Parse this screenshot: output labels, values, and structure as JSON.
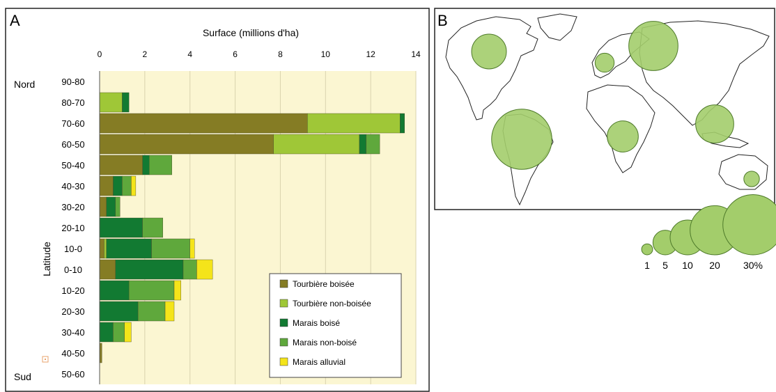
{
  "chart_data": [
    {
      "type": "bar",
      "orientation": "horizontal",
      "stacked": true,
      "panel_label": "A",
      "title": "Surface (millions d'ha)",
      "ylabel": "Latitude",
      "y_top_label": "Nord",
      "y_bottom_label": "Sud",
      "xlim": [
        0,
        14
      ],
      "xticks": [
        "0",
        "2",
        "4",
        "6",
        "8",
        "10",
        "12",
        "14"
      ],
      "grid": true,
      "legend_position": "bottom-right",
      "categories": [
        "90-80",
        "80-70",
        "70-60",
        "60-50",
        "50-40",
        "40-30",
        "30-20",
        "20-10",
        "10-0",
        "0-10",
        "10-20",
        "20-30",
        "30-40",
        "40-50",
        "50-60"
      ],
      "series": [
        {
          "name": "Tourbière boisée",
          "color": "#857c24",
          "values": [
            0,
            0,
            9.2,
            7.7,
            1.9,
            0.6,
            0.3,
            0,
            0.2,
            0.7,
            0,
            0,
            0,
            0.1,
            0
          ]
        },
        {
          "name": "Tourbière non-boisée",
          "color": "#9fc737",
          "values": [
            0,
            1.0,
            4.1,
            3.8,
            0,
            0,
            0,
            0,
            0.1,
            0,
            0,
            0,
            0,
            0,
            0
          ]
        },
        {
          "name": "Marais boisé",
          "color": "#127a32",
          "values": [
            0,
            0.3,
            0.2,
            0.3,
            0.3,
            0.4,
            0.4,
            1.9,
            2.0,
            3.0,
            1.3,
            1.7,
            0.6,
            0,
            0
          ]
        },
        {
          "name": "Marais non-boisé",
          "color": "#5fa83c",
          "values": [
            0,
            0,
            0,
            0.6,
            1.0,
            0.4,
            0.2,
            0.9,
            1.7,
            0.6,
            2.0,
            1.2,
            0.5,
            0,
            0
          ]
        },
        {
          "name": "Marais alluvial",
          "color": "#f4e41a",
          "values": [
            0,
            0,
            0,
            0,
            0,
            0.2,
            0,
            0,
            0.2,
            0.7,
            0.3,
            0.4,
            0.3,
            0,
            0
          ]
        }
      ]
    },
    {
      "type": "bubble-map",
      "panel_label": "B",
      "bubble_color": "#a3cd6b",
      "regions": [
        {
          "value": 10
        },
        {
          "value": 20
        },
        {
          "value": 3
        },
        {
          "value": 30
        },
        {
          "value": 8
        },
        {
          "value": 12
        },
        {
          "value": 2
        }
      ],
      "size_legend": [
        {
          "label": "1",
          "value": 1
        },
        {
          "label": "5",
          "value": 5
        },
        {
          "label": "10",
          "value": 10
        },
        {
          "label": "20",
          "value": 20
        },
        {
          "label": "30%",
          "value": 30
        }
      ]
    }
  ]
}
